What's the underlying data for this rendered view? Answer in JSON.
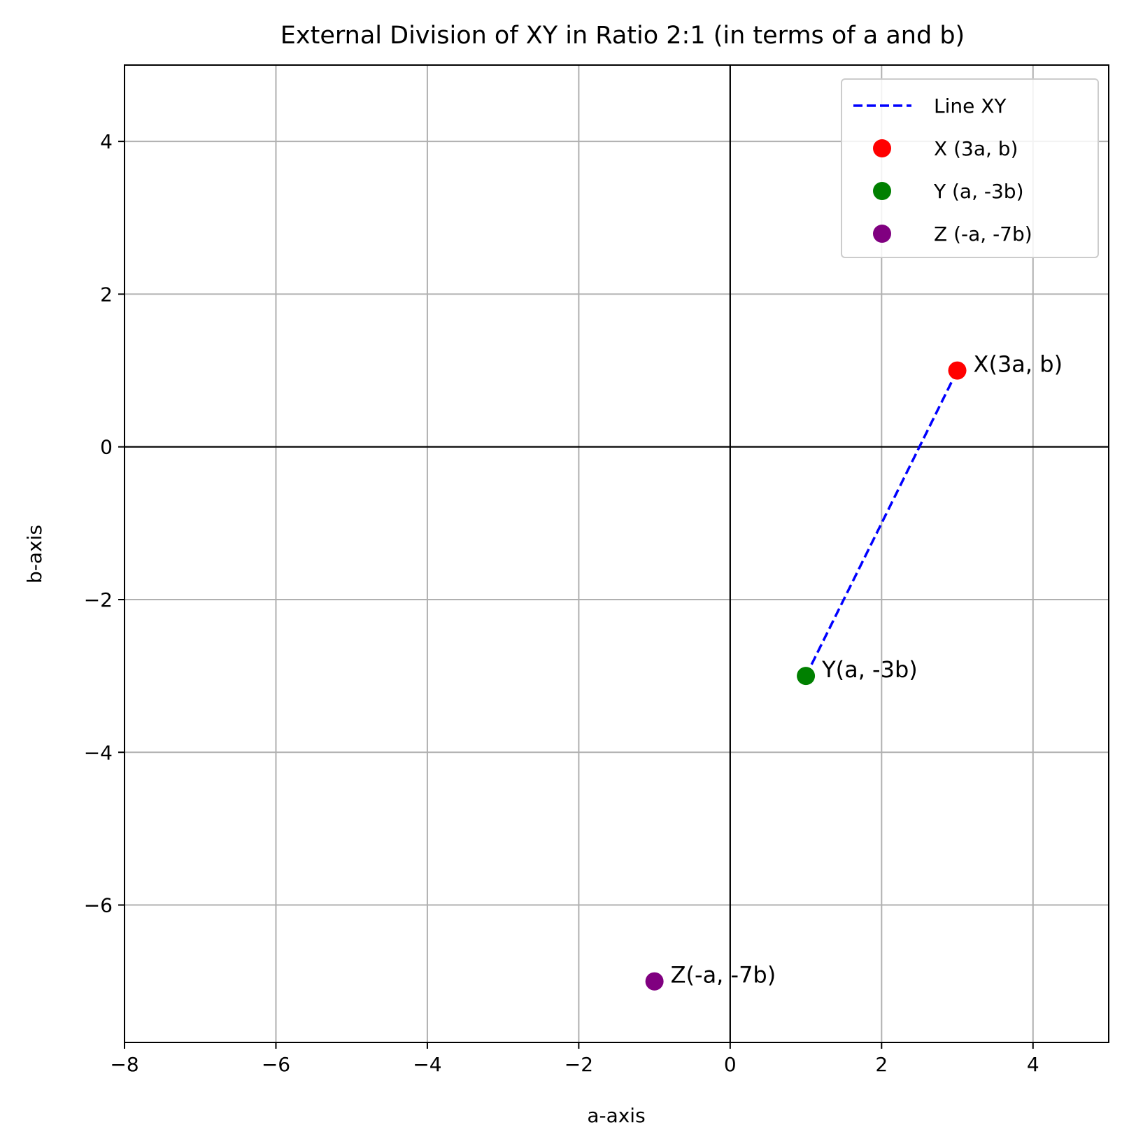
{
  "chart_data": {
    "type": "scatter",
    "title": "External Division of XY in Ratio 2:1 (in terms of a and b)",
    "xlabel": "a-axis",
    "ylabel": "b-axis",
    "xlim": [
      -8,
      5
    ],
    "ylim": [
      -7.8,
      5
    ],
    "xticks": [
      -8,
      -6,
      -4,
      -2,
      0,
      2,
      4
    ],
    "yticks": [
      4,
      2,
      0,
      -2,
      -4,
      -6
    ],
    "xtick_labels": [
      "−8",
      "−6",
      "−4",
      "−2",
      "0",
      "2",
      "4"
    ],
    "ytick_labels": [
      "4",
      "2",
      "0",
      "−2",
      "−4",
      "−6"
    ],
    "grid": true,
    "legend_position": "upper-right",
    "line": {
      "name": "Line XY",
      "style": "dashed",
      "color": "#0000ff",
      "points": [
        {
          "x": 3,
          "y": 1
        },
        {
          "x": 1,
          "y": -3
        }
      ]
    },
    "points": [
      {
        "legend": "X (3a, b)",
        "label": "X(3a, b)",
        "x": 3,
        "y": 1,
        "color": "#ff0000"
      },
      {
        "legend": "Y (a, -3b)",
        "label": "Y(a, -3b)",
        "x": 1,
        "y": -3,
        "color": "#008000"
      },
      {
        "legend": "Z (-a, -7b)",
        "label": "Z(-a, -7b)",
        "x": -1,
        "y": -7,
        "color": "#800080"
      }
    ]
  }
}
